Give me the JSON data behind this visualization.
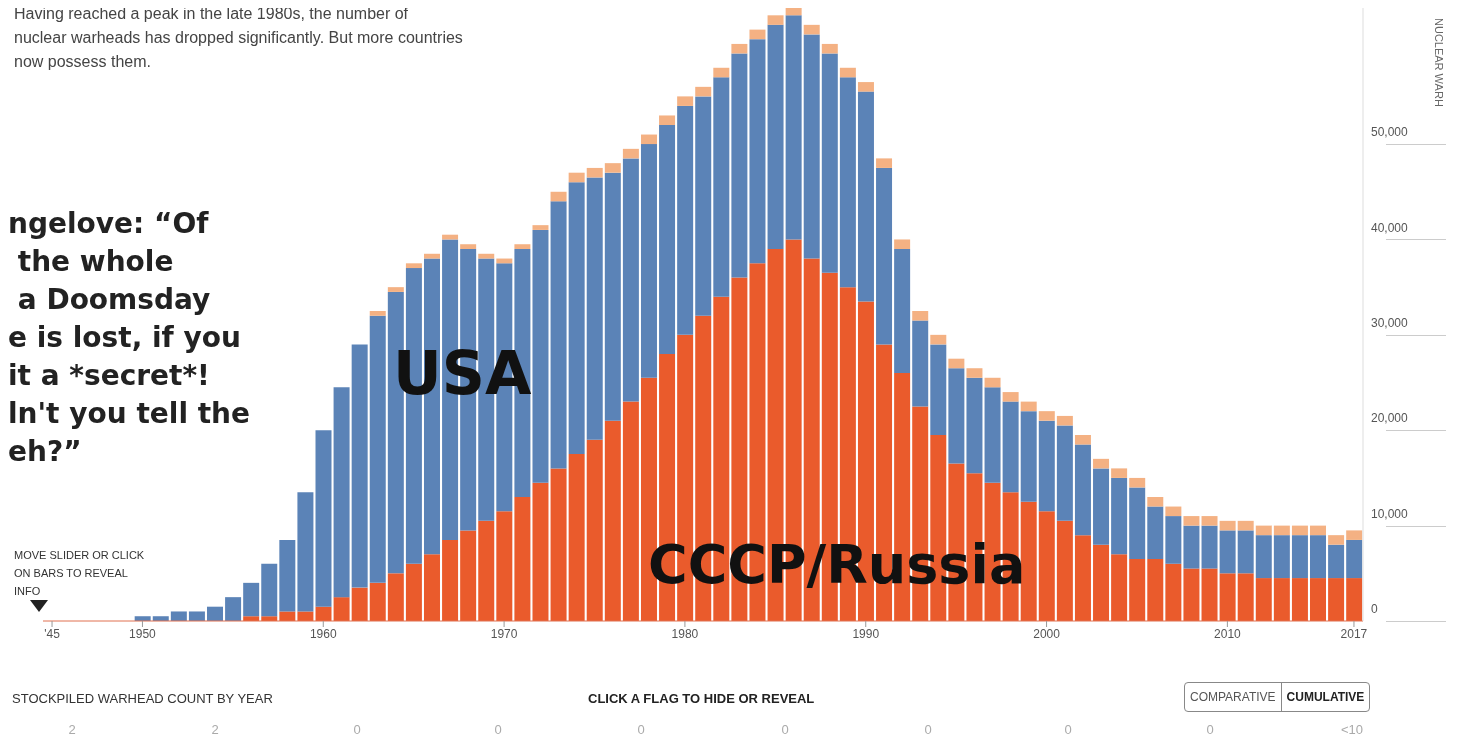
{
  "chart_data": {
    "type": "bar",
    "stacked": true,
    "subtitle": "Having reached a peak in the late 1980s, the number of nuclear warheads has dropped significantly. But more countries now possess them.",
    "ylabel": "NUCLEAR WARH",
    "annotations": [
      "ngelove: “Of\n the whole\n a Doomsday\ne is lost, if you\nit a *secret*!\nln't you tell the\neh?”",
      "MOVE SLIDER OR CLICK ON BARS TO REVEAL INFO",
      "STOCKPILED WARHEAD COUNT BY YEAR",
      "CLICK A FLAG TO HIDE OR REVEAL",
      "COMPARATIVE",
      "CUMULATIVE",
      "2",
      "2",
      "0",
      "0",
      "0",
      "0",
      "0",
      "0",
      "0",
      "<10"
    ],
    "categories": [
      "'45",
      null,
      null,
      null,
      null,
      "1950",
      null,
      null,
      null,
      null,
      null,
      null,
      null,
      null,
      null,
      "1960",
      null,
      null,
      null,
      null,
      null,
      null,
      null,
      null,
      null,
      "1970",
      null,
      null,
      null,
      null,
      null,
      null,
      null,
      null,
      null,
      "1980",
      null,
      null,
      null,
      null,
      null,
      null,
      null,
      null,
      null,
      "1990",
      null,
      null,
      null,
      null,
      null,
      null,
      null,
      null,
      null,
      "2000",
      null,
      null,
      null,
      null,
      null,
      null,
      null,
      null,
      null,
      "2010",
      null,
      null,
      null,
      null,
      null,
      null,
      "2017"
    ],
    "series": [
      {
        "name": "CCCP/Russia",
        "color": "#ea5b2c",
        "values": [
          0,
          0,
          0,
          0,
          0,
          0,
          0,
          0,
          0,
          0,
          0,
          500,
          500,
          1000,
          1000,
          1500,
          2500,
          3500,
          4000,
          5000,
          6000,
          7000,
          8500,
          9500,
          10500,
          11500,
          13000,
          14500,
          16000,
          17500,
          19000,
          21000,
          23000,
          25500,
          28000,
          30000,
          32000,
          34000,
          36000,
          37500,
          39000,
          40000,
          38000,
          36500,
          35000,
          33500,
          29000,
          26000,
          22500,
          19500,
          16500,
          15500,
          14500,
          13500,
          12500,
          11500,
          10500,
          9000,
          8000,
          7000,
          6500,
          6500,
          6000,
          5500,
          5500,
          5000,
          5000,
          4500,
          4500,
          4500,
          4500,
          4500,
          4500
        ]
      },
      {
        "name": "USA",
        "color": "#5b83b7",
        "values": [
          0,
          0,
          0,
          0,
          0,
          500,
          500,
          1000,
          1000,
          1500,
          2500,
          3500,
          5500,
          7500,
          12500,
          18500,
          22000,
          25500,
          28000,
          29500,
          31000,
          31000,
          31500,
          29500,
          27500,
          26000,
          26000,
          26500,
          28000,
          28500,
          27500,
          26000,
          25500,
          24500,
          24000,
          24000,
          23000,
          23000,
          23500,
          23500,
          23500,
          23500,
          23500,
          23000,
          22000,
          22000,
          18500,
          13000,
          9000,
          9500,
          10000,
          10000,
          10000,
          9500,
          9500,
          9500,
          10000,
          9500,
          8000,
          8000,
          7500,
          5500,
          5000,
          4500,
          4500,
          4500,
          4500,
          4500,
          4500,
          4500,
          4500,
          3500,
          4000
        ]
      },
      {
        "color": "#f4b183",
        "values": [
          0,
          0,
          0,
          0,
          0,
          0,
          0,
          0,
          0,
          0,
          0,
          0,
          0,
          0,
          0,
          0,
          0,
          0,
          500,
          500,
          500,
          500,
          500,
          500,
          500,
          500,
          500,
          500,
          1000,
          1000,
          1000,
          1000,
          1000,
          1000,
          1000,
          1000,
          1000,
          1000,
          1000,
          1000,
          1000,
          1000,
          1000,
          1000,
          1000,
          1000,
          1000,
          1000,
          1000,
          1000,
          1000,
          1000,
          1000,
          1000,
          1000,
          1000,
          1000,
          1000,
          1000,
          1000,
          1000,
          1000,
          1000,
          1000,
          1000,
          1000,
          1000,
          1000,
          1000,
          1000,
          1000,
          1000,
          1000
        ]
      }
    ],
    "ylim": [
      0,
      65000
    ],
    "yticks": [
      0,
      {
        "value": 10000,
        "label": "10,000"
      },
      {
        "value": 20000,
        "label": "20,000"
      },
      {
        "value": 30000,
        "label": "30,000"
      },
      {
        "value": 40000,
        "label": "40,000"
      },
      {
        "value": 50000,
        "label": "50,000"
      }
    ],
    "grid": false
  }
}
